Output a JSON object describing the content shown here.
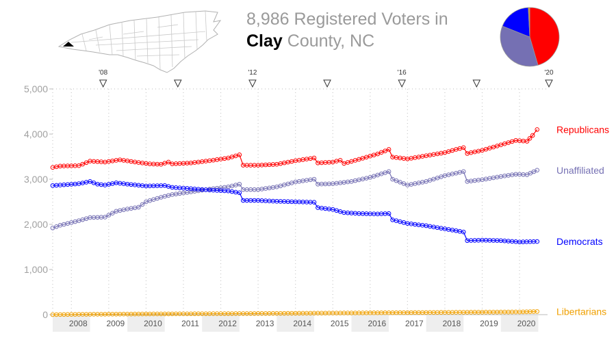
{
  "header": {
    "title_prefix": "8,986 Registered Voters in",
    "county_name": "Clay",
    "county_suffix": "County, NC"
  },
  "map": {
    "icon": "north-carolina-county-map-icon",
    "highlight_color": "#000000"
  },
  "pie": {
    "icon": "party-share-pie-icon",
    "slices": [
      {
        "party": "Republicans",
        "share": 0.455,
        "color": "#ff0000"
      },
      {
        "party": "Unaffiliated",
        "share": 0.355,
        "color": "#7570b3"
      },
      {
        "party": "Democrats",
        "share": 0.182,
        "color": "#0000ff"
      },
      {
        "party": "Libertarians",
        "share": 0.008,
        "color": "#f0a000"
      }
    ]
  },
  "chart_data": {
    "type": "line",
    "ylim": [
      0,
      5000
    ],
    "yticks": [
      0,
      1000,
      2000,
      3000,
      4000,
      5000
    ],
    "ytick_labels": [
      "0",
      "1,000",
      "2,000",
      "3,000",
      "4,000",
      "5,000"
    ],
    "xlim": [
      2007.5,
      2020.75
    ],
    "year_labels": [
      "2008",
      "2009",
      "2010",
      "2011",
      "2012",
      "2013",
      "2014",
      "2015",
      "2016",
      "2017",
      "2018",
      "2019",
      "2020"
    ],
    "election_markers": [
      {
        "x": 2008.85,
        "label": "'08"
      },
      {
        "x": 2010.85,
        "label": ""
      },
      {
        "x": 2012.85,
        "label": "'12"
      },
      {
        "x": 2014.85,
        "label": ""
      },
      {
        "x": 2016.85,
        "label": "'16"
      },
      {
        "x": 2018.85,
        "label": ""
      },
      {
        "x": 2020.85,
        "label": "'20"
      }
    ],
    "grid": "dotted vertical",
    "legend_placement": "right, at line ends",
    "series": [
      {
        "name": "Republicans",
        "color": "#ff0000",
        "points": [
          [
            2007.5,
            3260
          ],
          [
            2007.7,
            3290
          ],
          [
            2008.2,
            3300
          ],
          [
            2008.5,
            3400
          ],
          [
            2008.9,
            3380
          ],
          [
            2009.3,
            3430
          ],
          [
            2009.8,
            3370
          ],
          [
            2010.1,
            3340
          ],
          [
            2010.4,
            3330
          ],
          [
            2010.6,
            3380
          ],
          [
            2010.7,
            3340
          ],
          [
            2011.2,
            3360
          ],
          [
            2011.7,
            3410
          ],
          [
            2012.2,
            3470
          ],
          [
            2012.5,
            3540
          ],
          [
            2012.6,
            3310
          ],
          [
            2013.0,
            3310
          ],
          [
            2013.5,
            3330
          ],
          [
            2014.0,
            3410
          ],
          [
            2014.5,
            3470
          ],
          [
            2014.6,
            3360
          ],
          [
            2015.0,
            3380
          ],
          [
            2015.2,
            3420
          ],
          [
            2015.3,
            3350
          ],
          [
            2015.7,
            3440
          ],
          [
            2016.2,
            3560
          ],
          [
            2016.5,
            3660
          ],
          [
            2016.6,
            3490
          ],
          [
            2017.0,
            3450
          ],
          [
            2017.5,
            3520
          ],
          [
            2018.0,
            3590
          ],
          [
            2018.3,
            3660
          ],
          [
            2018.5,
            3700
          ],
          [
            2018.6,
            3570
          ],
          [
            2019.0,
            3640
          ],
          [
            2019.5,
            3760
          ],
          [
            2019.9,
            3860
          ],
          [
            2020.2,
            3840
          ],
          [
            2020.35,
            3970
          ],
          [
            2020.47,
            4100
          ]
        ]
      },
      {
        "name": "Unaffiliated",
        "color": "#7570b3",
        "points": [
          [
            2007.5,
            1920
          ],
          [
            2007.7,
            1980
          ],
          [
            2008.2,
            2080
          ],
          [
            2008.5,
            2150
          ],
          [
            2008.9,
            2160
          ],
          [
            2009.2,
            2290
          ],
          [
            2009.5,
            2340
          ],
          [
            2009.8,
            2380
          ],
          [
            2010.0,
            2500
          ],
          [
            2010.4,
            2600
          ],
          [
            2010.7,
            2660
          ],
          [
            2011.2,
            2720
          ],
          [
            2011.7,
            2780
          ],
          [
            2012.2,
            2830
          ],
          [
            2012.5,
            2890
          ],
          [
            2012.6,
            2770
          ],
          [
            2013.0,
            2770
          ],
          [
            2013.5,
            2830
          ],
          [
            2014.0,
            2940
          ],
          [
            2014.5,
            3000
          ],
          [
            2014.6,
            2890
          ],
          [
            2015.0,
            2900
          ],
          [
            2015.5,
            2950
          ],
          [
            2016.0,
            3040
          ],
          [
            2016.5,
            3170
          ],
          [
            2016.6,
            3000
          ],
          [
            2017.0,
            2870
          ],
          [
            2017.5,
            2950
          ],
          [
            2018.0,
            3080
          ],
          [
            2018.5,
            3170
          ],
          [
            2018.6,
            2950
          ],
          [
            2019.0,
            2990
          ],
          [
            2019.5,
            3060
          ],
          [
            2019.9,
            3110
          ],
          [
            2020.2,
            3100
          ],
          [
            2020.47,
            3200
          ]
        ]
      },
      {
        "name": "Democrats",
        "color": "#0000ff",
        "points": [
          [
            2007.5,
            2860
          ],
          [
            2007.7,
            2870
          ],
          [
            2008.2,
            2900
          ],
          [
            2008.5,
            2950
          ],
          [
            2008.7,
            2890
          ],
          [
            2008.9,
            2870
          ],
          [
            2009.2,
            2920
          ],
          [
            2009.5,
            2890
          ],
          [
            2010.0,
            2850
          ],
          [
            2010.5,
            2860
          ],
          [
            2010.7,
            2820
          ],
          [
            2011.2,
            2790
          ],
          [
            2011.7,
            2760
          ],
          [
            2012.2,
            2740
          ],
          [
            2012.5,
            2700
          ],
          [
            2012.6,
            2530
          ],
          [
            2013.0,
            2530
          ],
          [
            2013.5,
            2510
          ],
          [
            2014.0,
            2500
          ],
          [
            2014.5,
            2490
          ],
          [
            2014.6,
            2370
          ],
          [
            2015.0,
            2330
          ],
          [
            2015.3,
            2260
          ],
          [
            2015.7,
            2240
          ],
          [
            2016.2,
            2230
          ],
          [
            2016.5,
            2240
          ],
          [
            2016.6,
            2100
          ],
          [
            2017.0,
            2020
          ],
          [
            2017.5,
            1970
          ],
          [
            2018.0,
            1900
          ],
          [
            2018.3,
            1860
          ],
          [
            2018.5,
            1830
          ],
          [
            2018.6,
            1640
          ],
          [
            2019.0,
            1650
          ],
          [
            2019.5,
            1640
          ],
          [
            2020.0,
            1610
          ],
          [
            2020.47,
            1620
          ]
        ]
      },
      {
        "name": "Libertarians",
        "color": "#f0a000",
        "points": [
          [
            2007.5,
            0
          ],
          [
            2008.0,
            5
          ],
          [
            2009.0,
            10
          ],
          [
            2010.0,
            15
          ],
          [
            2011.0,
            18
          ],
          [
            2012.0,
            22
          ],
          [
            2013.0,
            25
          ],
          [
            2014.0,
            30
          ],
          [
            2015.0,
            35
          ],
          [
            2016.0,
            40
          ],
          [
            2017.0,
            45
          ],
          [
            2018.0,
            50
          ],
          [
            2019.0,
            55
          ],
          [
            2020.0,
            60
          ],
          [
            2020.47,
            70
          ]
        ]
      }
    ]
  }
}
